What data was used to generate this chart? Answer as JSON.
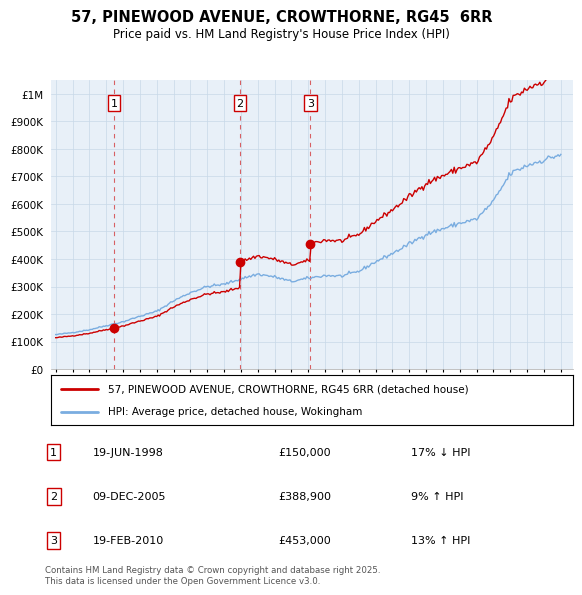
{
  "title": "57, PINEWOOD AVENUE, CROWTHORNE, RG45  6RR",
  "subtitle": "Price paid vs. HM Land Registry's House Price Index (HPI)",
  "property_label": "57, PINEWOOD AVENUE, CROWTHORNE, RG45 6RR (detached house)",
  "hpi_label": "HPI: Average price, detached house, Wokingham",
  "transaction_labels": [
    {
      "num": 1,
      "date": "19-JUN-1998",
      "price": "£150,000",
      "change": "17% ↓ HPI"
    },
    {
      "num": 2,
      "date": "09-DEC-2005",
      "price": "£388,900",
      "change": "9% ↑ HPI"
    },
    {
      "num": 3,
      "date": "19-FEB-2010",
      "price": "£453,000",
      "change": "13% ↑ HPI"
    }
  ],
  "footer": "Contains HM Land Registry data © Crown copyright and database right 2025.\nThis data is licensed under the Open Government Licence v3.0.",
  "sale_dates": [
    1998.46,
    2005.94,
    2010.13
  ],
  "sale_prices": [
    150000,
    388900,
    453000
  ],
  "sale_marker_nums": [
    1,
    2,
    3
  ],
  "property_color": "#cc0000",
  "hpi_color": "#7aade0",
  "bg_color": "#e8f0f8",
  "grid_color": "#c8d8e8",
  "ylim": [
    0,
    1050000
  ],
  "xlim_start": 1994.7,
  "xlim_end": 2025.7,
  "xtick_start": 1995,
  "xtick_end": 2025
}
